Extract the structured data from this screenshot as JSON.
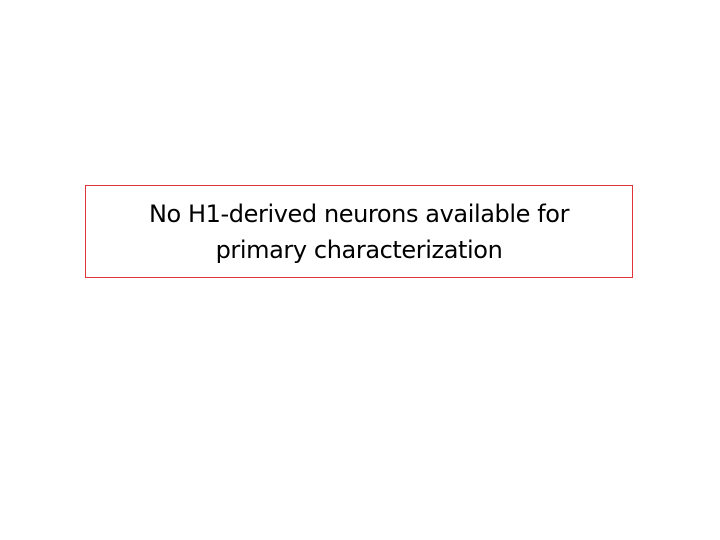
{
  "slide": {
    "notice": {
      "line1": "No H1-derived neurons available for",
      "line2": "primary characterization"
    },
    "colors": {
      "background": "#ffffff",
      "box_border": "#e0343a",
      "text": "#000000"
    }
  }
}
